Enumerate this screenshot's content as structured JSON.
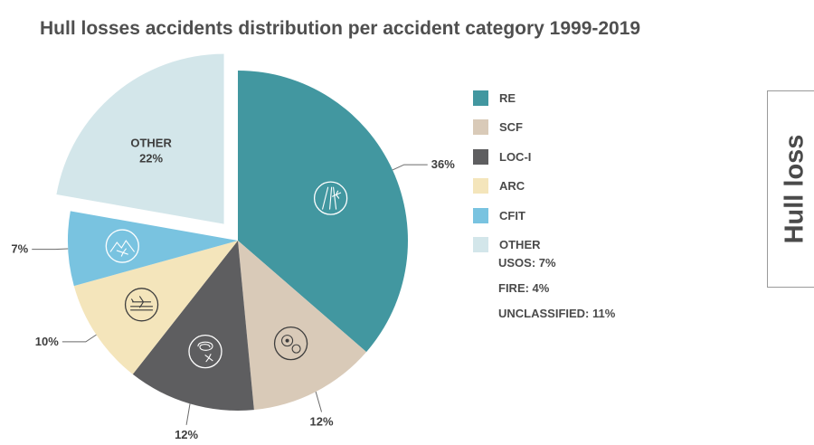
{
  "title": "Hull losses accidents distribution per accident category 1999-2019",
  "side_tab": {
    "label": "Hull loss"
  },
  "chart_data": {
    "type": "pie",
    "title": "Hull losses accidents distribution per accident category 1999-2019",
    "legend_position": "right",
    "slices": [
      {
        "name": "RE",
        "value": 36,
        "label": "36%",
        "color": "#4297a0",
        "icon": "runway-excursion-icon"
      },
      {
        "name": "SCF",
        "value": 12,
        "label": "12%",
        "color": "#d9cab8",
        "icon": "gears-icon"
      },
      {
        "name": "LOC-I",
        "value": 12,
        "label": "12%",
        "color": "#5e5e60",
        "icon": "spiral-icon"
      },
      {
        "name": "ARC",
        "value": 10,
        "label": "10%",
        "color": "#f4e5bb",
        "icon": "landing-aircraft-icon"
      },
      {
        "name": "CFIT",
        "value": 7,
        "label": "7%",
        "color": "#79c3e0",
        "icon": "mountain-aircraft-icon"
      },
      {
        "name": "OTHER",
        "value": 22,
        "label": "22%",
        "color": "#d3e6ea",
        "exploded": true
      }
    ],
    "other_breakdown": [
      "USOS: 7%",
      "FIRE: 4%",
      "UNCLASSIFIED: 11%"
    ]
  }
}
